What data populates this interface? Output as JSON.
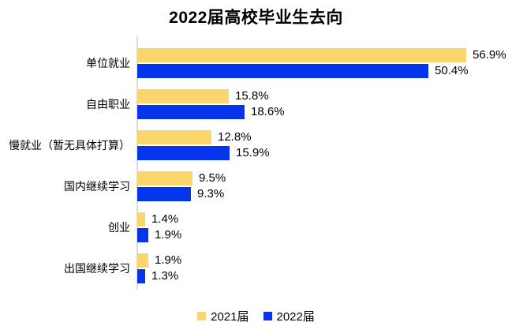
{
  "title": "2022届高校毕业生去向",
  "colors": {
    "series_2021": "#fad66c",
    "series_2022": "#0435ec",
    "axis_line": "#dcdcdc",
    "text": "#000000"
  },
  "legend": {
    "items": [
      {
        "label": "2021届",
        "color_key": "series_2021"
      },
      {
        "label": "2022届",
        "color_key": "series_2022"
      }
    ],
    "position": "bottom-center"
  },
  "chart_data": {
    "type": "bar",
    "orientation": "horizontal",
    "title": "2022届高校毕业生去向",
    "categories": [
      "单位就业",
      "自由职业",
      "慢就业（暂无具体打算）",
      "国内继续学习",
      "创业",
      "出国继续学习"
    ],
    "series": [
      {
        "name": "2021届",
        "color_key": "series_2021",
        "values": [
          56.9,
          15.8,
          12.8,
          9.5,
          1.4,
          1.9
        ]
      },
      {
        "name": "2022届",
        "color_key": "series_2022",
        "values": [
          50.4,
          18.6,
          15.9,
          9.3,
          1.9,
          1.3
        ]
      }
    ],
    "value_suffix": "%",
    "value_decimals": 1,
    "xlim": [
      0,
      60
    ],
    "grid": false,
    "data_labels_visible": true,
    "legend_position": "bottom"
  }
}
